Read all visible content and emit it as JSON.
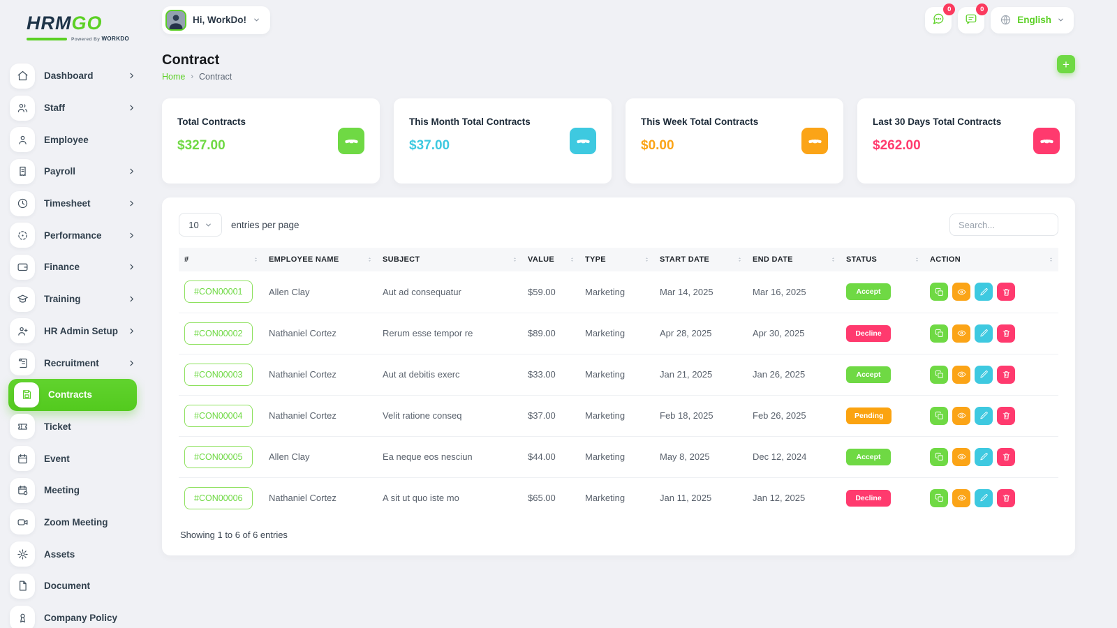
{
  "brand": {
    "name_primary": "HRM",
    "name_secondary": "GO",
    "powered_by": "Powered By",
    "powered_brand": "WORKDO"
  },
  "header": {
    "greeting": "Hi, WorkDo!",
    "chat_badge": "0",
    "message_badge": "0",
    "language": "English"
  },
  "sidebar": {
    "items": [
      {
        "label": "Dashboard",
        "icon": "home",
        "chevron": true,
        "active": false
      },
      {
        "label": "Staff",
        "icon": "users",
        "chevron": true,
        "active": false
      },
      {
        "label": "Employee",
        "icon": "user",
        "chevron": false,
        "active": false
      },
      {
        "label": "Payroll",
        "icon": "receipt",
        "chevron": true,
        "active": false
      },
      {
        "label": "Timesheet",
        "icon": "clock",
        "chevron": true,
        "active": false
      },
      {
        "label": "Performance",
        "icon": "target",
        "chevron": true,
        "active": false
      },
      {
        "label": "Finance",
        "icon": "wallet",
        "chevron": true,
        "active": false
      },
      {
        "label": "Training",
        "icon": "graduation-cap",
        "chevron": true,
        "active": false
      },
      {
        "label": "HR Admin Setup",
        "icon": "user-plus",
        "chevron": true,
        "active": false
      },
      {
        "label": "Recruitment",
        "icon": "scroll",
        "chevron": true,
        "active": false
      },
      {
        "label": "Contracts",
        "icon": "floppy",
        "chevron": false,
        "active": true
      },
      {
        "label": "Ticket",
        "icon": "ticket",
        "chevron": false,
        "active": false
      },
      {
        "label": "Event",
        "icon": "calendar",
        "chevron": false,
        "active": false
      },
      {
        "label": "Meeting",
        "icon": "calendar-check",
        "chevron": false,
        "active": false
      },
      {
        "label": "Zoom Meeting",
        "icon": "video",
        "chevron": false,
        "active": false
      },
      {
        "label": "Assets",
        "icon": "gear",
        "chevron": false,
        "active": false
      },
      {
        "label": "Document",
        "icon": "file",
        "chevron": false,
        "active": false
      },
      {
        "label": "Company Policy",
        "icon": "award",
        "chevron": false,
        "active": false
      }
    ]
  },
  "page": {
    "title": "Contract",
    "breadcrumb_home": "Home",
    "breadcrumb_current": "Contract",
    "add_label": "+"
  },
  "stats": [
    {
      "label": "Total Contracts",
      "value": "$327.00",
      "color": "#6fd944"
    },
    {
      "label": "This Month Total Contracts",
      "value": "$37.00",
      "color": "#3ec9e0"
    },
    {
      "label": "This Week Total Contracts",
      "value": "$0.00",
      "color": "#fba417"
    },
    {
      "label": "Last 30 Days Total Contracts",
      "value": "$262.00",
      "color": "#ff3a6e"
    }
  ],
  "table": {
    "entries_value": "10",
    "entries_label": "entries per page",
    "search_placeholder": "Search...",
    "columns": [
      "#",
      "EMPLOYEE NAME",
      "SUBJECT",
      "VALUE",
      "TYPE",
      "START DATE",
      "END DATE",
      "STATUS",
      "ACTION"
    ],
    "rows": [
      {
        "id": "#CON00001",
        "employee": "Allen Clay",
        "subject": "Aut ad consequatur",
        "value": "$59.00",
        "type": "Marketing",
        "start": "Mar 14, 2025",
        "end": "Mar 16, 2025",
        "status": "Accept"
      },
      {
        "id": "#CON00002",
        "employee": "Nathaniel Cortez",
        "subject": "Rerum esse tempor re",
        "value": "$89.00",
        "type": "Marketing",
        "start": "Apr 28, 2025",
        "end": "Apr 30, 2025",
        "status": "Decline"
      },
      {
        "id": "#CON00003",
        "employee": "Nathaniel Cortez",
        "subject": "Aut at debitis exerc",
        "value": "$33.00",
        "type": "Marketing",
        "start": "Jan 21, 2025",
        "end": "Jan 26, 2025",
        "status": "Accept"
      },
      {
        "id": "#CON00004",
        "employee": "Nathaniel Cortez",
        "subject": "Velit ratione conseq",
        "value": "$37.00",
        "type": "Marketing",
        "start": "Feb 18, 2025",
        "end": "Feb 26, 2025",
        "status": "Pending"
      },
      {
        "id": "#CON00005",
        "employee": "Allen Clay",
        "subject": "Ea neque eos nesciun",
        "value": "$44.00",
        "type": "Marketing",
        "start": "May 8, 2025",
        "end": "Dec 12, 2024",
        "status": "Accept"
      },
      {
        "id": "#CON00006",
        "employee": "Nathaniel Cortez",
        "subject": "A sit ut quo iste mo",
        "value": "$65.00",
        "type": "Marketing",
        "start": "Jan 11, 2025",
        "end": "Jan 12, 2025",
        "status": "Decline"
      }
    ],
    "footer": "Showing 1 to 6 of 6 entries"
  },
  "colors": {
    "accent": "#6fd944",
    "status": {
      "Accept": "#6fd944",
      "Decline": "#ff3a6e",
      "Pending": "#fba310"
    },
    "actions": [
      {
        "name": "copy-icon",
        "color": "#6fd944"
      },
      {
        "name": "eye-icon",
        "color": "#fba417"
      },
      {
        "name": "edit-icon",
        "color": "#3ec9e0"
      },
      {
        "name": "delete-icon",
        "color": "#ff3a6e"
      }
    ]
  }
}
